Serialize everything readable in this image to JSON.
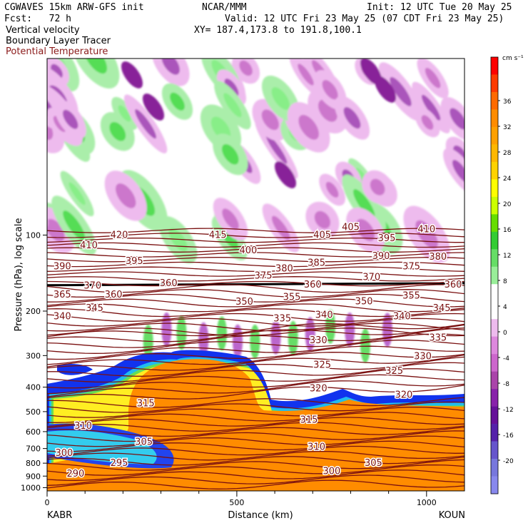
{
  "header": {
    "model": "CGWAVES 15km ARW-GFS init",
    "fcst": "Fcst:   72 h",
    "field1": "Vertical velocity",
    "field2": "Boundary Layer Tracer",
    "field3": "Potential Temperature",
    "org": "NCAR/MMM",
    "init": "Init: 12 UTC Tue 20 May 25",
    "valid": "Valid: 12 UTC Fri 23 May 25 (07 CDT Fri 23 May 25)",
    "xy": "XY= 187.4,173.8 to 191.8,100.1",
    "field3_color": "#8b1a1a"
  },
  "chart_data": {
    "type": "cross-section",
    "xlabel": "Distance (km)",
    "ylabel": "Pressure (hPa), log scale",
    "x_ticks": [
      "0",
      "500",
      "1000"
    ],
    "x_tick_values": [
      0,
      500,
      1000
    ],
    "xlim": [
      0,
      1100
    ],
    "y_ticks": [
      "100",
      "200",
      "300",
      "400",
      "500",
      "600",
      "700",
      "800",
      "900",
      "1000"
    ],
    "y_tick_values": [
      100,
      200,
      300,
      400,
      500,
      600,
      700,
      800,
      900,
      1000
    ],
    "ylim": [
      1030,
      20
    ],
    "y_scale": "log",
    "left_station": "KABR",
    "right_station": "KOUN",
    "colorbar": {
      "units": "cm s⁻¹",
      "labels": [
        "36",
        "32",
        "28",
        "24",
        "20",
        "16",
        "12",
        "8",
        "4",
        "0",
        "-4",
        "-8",
        "-12",
        "-16",
        "-20"
      ],
      "colors": [
        "#ff0000",
        "#ff3a00",
        "#ff6a00",
        "#ff8c00",
        "#ffa000",
        "#ffb700",
        "#ffd200",
        "#ffff00",
        "#ccff00",
        "#66dd00",
        "#33cc33",
        "#66dd66",
        "#99ee99",
        "#ffffff",
        "#ffffff",
        "#eebbee",
        "#dd88dd",
        "#cc66cc",
        "#aa44aa",
        "#8822aa",
        "#661199",
        "#5522aa",
        "#6655cc",
        "#7777dd",
        "#8888ee"
      ]
    },
    "theta_labels": [
      {
        "v": "420",
        "x": 190,
        "p": 100
      },
      {
        "v": "415",
        "x": 450,
        "p": 100
      },
      {
        "v": "405",
        "x": 725,
        "p": 100
      },
      {
        "v": "405",
        "x": 800,
        "p": 93
      },
      {
        "v": "395",
        "x": 895,
        "p": 103
      },
      {
        "v": "410",
        "x": 1000,
        "p": 95
      },
      {
        "v": "410",
        "x": 110,
        "p": 110
      },
      {
        "v": "400",
        "x": 530,
        "p": 115
      },
      {
        "v": "390",
        "x": 880,
        "p": 121
      },
      {
        "v": "390",
        "x": 40,
        "p": 133
      },
      {
        "v": "395",
        "x": 230,
        "p": 127
      },
      {
        "v": "385",
        "x": 710,
        "p": 129
      },
      {
        "v": "380",
        "x": 625,
        "p": 136
      },
      {
        "v": "380",
        "x": 1030,
        "p": 122
      },
      {
        "v": "375",
        "x": 570,
        "p": 145
      },
      {
        "v": "375",
        "x": 960,
        "p": 133
      },
      {
        "v": "370",
        "x": 120,
        "p": 159
      },
      {
        "v": "360",
        "x": 320,
        "p": 155
      },
      {
        "v": "360",
        "x": 700,
        "p": 157
      },
      {
        "v": "370",
        "x": 855,
        "p": 147
      },
      {
        "v": "360",
        "x": 1070,
        "p": 157
      },
      {
        "v": "365",
        "x": 40,
        "p": 172
      },
      {
        "v": "360",
        "x": 175,
        "p": 172
      },
      {
        "v": "355",
        "x": 645,
        "p": 176
      },
      {
        "v": "350",
        "x": 520,
        "p": 184
      },
      {
        "v": "350",
        "x": 835,
        "p": 183
      },
      {
        "v": "355",
        "x": 960,
        "p": 174
      },
      {
        "v": "345",
        "x": 125,
        "p": 195
      },
      {
        "v": "345",
        "x": 1040,
        "p": 195
      },
      {
        "v": "340",
        "x": 40,
        "p": 210
      },
      {
        "v": "340",
        "x": 730,
        "p": 207
      },
      {
        "v": "340",
        "x": 935,
        "p": 210
      },
      {
        "v": "335",
        "x": 620,
        "p": 214
      },
      {
        "v": "335",
        "x": 1030,
        "p": 255
      },
      {
        "v": "330",
        "x": 715,
        "p": 261
      },
      {
        "v": "330",
        "x": 990,
        "p": 302
      },
      {
        "v": "325",
        "x": 725,
        "p": 327
      },
      {
        "v": "325",
        "x": 915,
        "p": 345
      },
      {
        "v": "320",
        "x": 715,
        "p": 405
      },
      {
        "v": "320",
        "x": 940,
        "p": 430
      },
      {
        "v": "315",
        "x": 260,
        "p": 465
      },
      {
        "v": "315",
        "x": 690,
        "p": 540
      },
      {
        "v": "310",
        "x": 95,
        "p": 570
      },
      {
        "v": "310",
        "x": 710,
        "p": 690
      },
      {
        "v": "305",
        "x": 255,
        "p": 660
      },
      {
        "v": "305",
        "x": 860,
        "p": 800
      },
      {
        "v": "300",
        "x": 45,
        "p": 730
      },
      {
        "v": "300",
        "x": 750,
        "p": 860
      },
      {
        "v": "295",
        "x": 190,
        "p": 800
      },
      {
        "v": "290",
        "x": 75,
        "p": 880
      }
    ]
  }
}
